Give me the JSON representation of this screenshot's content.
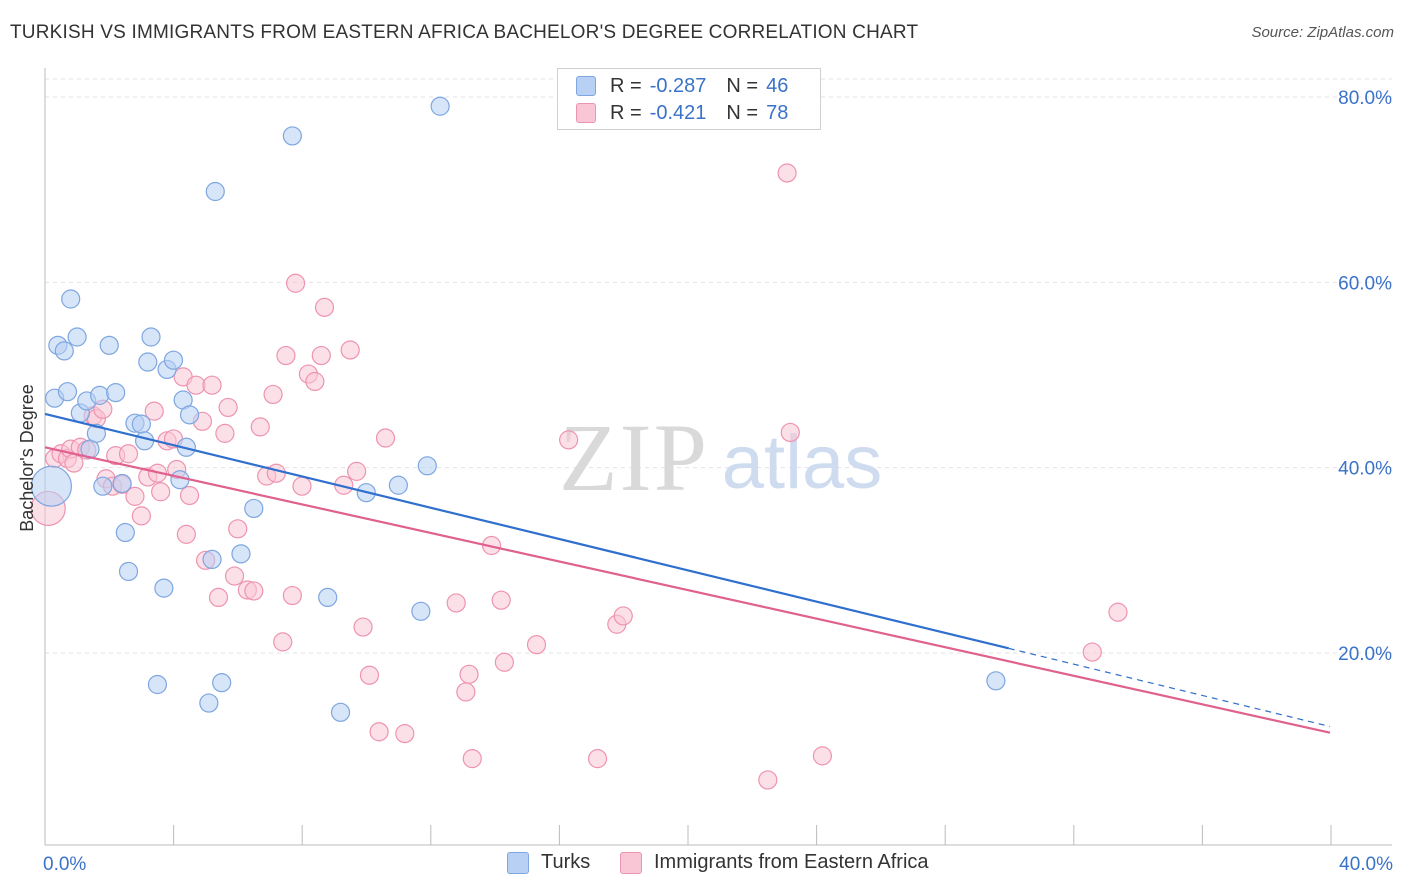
{
  "header": {
    "title": "TURKISH VS IMMIGRANTS FROM EASTERN AFRICA BACHELOR'S DEGREE CORRELATION CHART",
    "source": "Source: ZipAtlas.com"
  },
  "legend_top": {
    "rows": [
      {
        "r_label": "R =",
        "r_value": "-0.287",
        "n_label": "N =",
        "n_value": "46"
      },
      {
        "r_label": "R =",
        "r_value": "-0.421",
        "n_label": "N =",
        "n_value": "78"
      }
    ]
  },
  "legend_bottom": {
    "items": [
      {
        "label": "Turks"
      },
      {
        "label": "Immigrants from Eastern Africa"
      }
    ]
  },
  "watermark": {
    "zip": "ZIP",
    "atlas": "atlas"
  },
  "colors": {
    "turks_fill": "#b7d0f4",
    "turks_stroke": "#7ea6e0",
    "turks_line": "#2f6fcd",
    "eaf_fill": "#f9c6d6",
    "eaf_stroke": "#ee93b0",
    "eaf_line": "#e0608e",
    "axis_text": "#3a72c8",
    "grid": "#e2e2e2"
  },
  "chart_data": {
    "type": "scatter",
    "title": "TURKISH VS IMMIGRANTS FROM EASTERN AFRICA BACHELOR'S DEGREE CORRELATION CHART",
    "xlabel": "",
    "ylabel": "Bachelor's Degree",
    "xlim": [
      0,
      40
    ],
    "ylim": [
      0,
      85
    ],
    "x_tick_labels": [
      "0.0%",
      "40.0%"
    ],
    "y_tick_labels": [
      "20.0%",
      "40.0%",
      "60.0%",
      "80.0%"
    ],
    "y_ticks": [
      20,
      40,
      60,
      80
    ],
    "grid": true,
    "legend_position": "top-center",
    "series": [
      {
        "name": "Turks",
        "r": -0.287,
        "n": 46,
        "trend": {
          "x0": 0,
          "y0": 45.8,
          "x1": 30,
          "y1": 20.5,
          "dashed_to_x": 40
        },
        "points": [
          [
            0.2,
            38.0
          ],
          [
            0.3,
            47.5
          ],
          [
            0.4,
            53.2
          ],
          [
            0.6,
            52.6
          ],
          [
            0.7,
            48.2
          ],
          [
            0.8,
            58.2
          ],
          [
            1.0,
            54.1
          ],
          [
            1.1,
            45.9
          ],
          [
            1.3,
            47.2
          ],
          [
            1.4,
            42.0
          ],
          [
            1.6,
            43.7
          ],
          [
            1.7,
            47.8
          ],
          [
            1.8,
            38.0
          ],
          [
            2.0,
            53.2
          ],
          [
            2.2,
            48.1
          ],
          [
            2.4,
            38.3
          ],
          [
            2.5,
            33.0
          ],
          [
            2.6,
            28.8
          ],
          [
            2.8,
            44.8
          ],
          [
            3.0,
            44.7
          ],
          [
            3.1,
            42.9
          ],
          [
            3.2,
            51.4
          ],
          [
            3.3,
            54.1
          ],
          [
            3.5,
            16.6
          ],
          [
            3.7,
            27.0
          ],
          [
            3.8,
            50.6
          ],
          [
            4.0,
            51.6
          ],
          [
            4.2,
            38.7
          ],
          [
            4.3,
            47.3
          ],
          [
            4.4,
            42.2
          ],
          [
            4.5,
            45.7
          ],
          [
            5.1,
            14.6
          ],
          [
            5.2,
            30.1
          ],
          [
            5.3,
            69.8
          ],
          [
            5.5,
            16.8
          ],
          [
            6.1,
            30.7
          ],
          [
            6.5,
            35.6
          ],
          [
            7.7,
            75.8
          ],
          [
            8.8,
            26.0
          ],
          [
            9.2,
            13.6
          ],
          [
            10.0,
            37.3
          ],
          [
            11.0,
            38.1
          ],
          [
            11.7,
            24.5
          ],
          [
            11.9,
            40.2
          ],
          [
            12.3,
            79.0
          ],
          [
            29.6,
            17.0
          ]
        ]
      },
      {
        "name": "Immigrants from Eastern Africa",
        "r": -0.421,
        "n": 78,
        "trend": {
          "x0": 0,
          "y0": 42.2,
          "x1": 40,
          "y1": 11.4
        },
        "points": [
          [
            0.1,
            35.6
          ],
          [
            0.3,
            41.0
          ],
          [
            0.5,
            41.5
          ],
          [
            0.7,
            41.0
          ],
          [
            0.8,
            42.0
          ],
          [
            0.9,
            40.5
          ],
          [
            1.1,
            42.2
          ],
          [
            1.3,
            41.9
          ],
          [
            1.5,
            45.6
          ],
          [
            1.6,
            45.3
          ],
          [
            1.8,
            46.3
          ],
          [
            1.9,
            38.8
          ],
          [
            2.1,
            38.0
          ],
          [
            2.2,
            41.3
          ],
          [
            2.4,
            38.2
          ],
          [
            2.6,
            41.5
          ],
          [
            2.8,
            36.9
          ],
          [
            3.0,
            34.8
          ],
          [
            3.2,
            39.0
          ],
          [
            3.4,
            46.1
          ],
          [
            3.5,
            39.4
          ],
          [
            3.6,
            37.4
          ],
          [
            3.8,
            42.9
          ],
          [
            4.0,
            43.1
          ],
          [
            4.1,
            39.8
          ],
          [
            4.3,
            49.8
          ],
          [
            4.4,
            32.8
          ],
          [
            4.5,
            37.0
          ],
          [
            4.7,
            48.9
          ],
          [
            4.9,
            45.0
          ],
          [
            5.0,
            30.0
          ],
          [
            5.2,
            48.9
          ],
          [
            5.4,
            26.0
          ],
          [
            5.6,
            43.7
          ],
          [
            5.7,
            46.5
          ],
          [
            5.9,
            28.3
          ],
          [
            6.0,
            33.4
          ],
          [
            6.3,
            26.8
          ],
          [
            6.5,
            26.7
          ],
          [
            6.7,
            44.4
          ],
          [
            6.9,
            39.1
          ],
          [
            7.1,
            47.9
          ],
          [
            7.2,
            39.4
          ],
          [
            7.4,
            21.2
          ],
          [
            7.5,
            52.1
          ],
          [
            7.7,
            26.2
          ],
          [
            7.8,
            59.9
          ],
          [
            8.0,
            38.0
          ],
          [
            8.2,
            50.1
          ],
          [
            8.4,
            49.3
          ],
          [
            8.6,
            52.1
          ],
          [
            8.7,
            57.3
          ],
          [
            9.3,
            38.1
          ],
          [
            9.5,
            52.7
          ],
          [
            9.7,
            39.6
          ],
          [
            9.9,
            22.8
          ],
          [
            10.1,
            17.6
          ],
          [
            10.4,
            11.5
          ],
          [
            10.6,
            43.2
          ],
          [
            11.2,
            11.3
          ],
          [
            12.8,
            25.4
          ],
          [
            13.1,
            15.8
          ],
          [
            13.2,
            17.7
          ],
          [
            13.3,
            8.6
          ],
          [
            13.9,
            31.6
          ],
          [
            14.2,
            25.7
          ],
          [
            14.3,
            19.0
          ],
          [
            15.3,
            20.9
          ],
          [
            16.3,
            43.0
          ],
          [
            17.2,
            8.6
          ],
          [
            17.8,
            23.1
          ],
          [
            18.0,
            24.0
          ],
          [
            22.5,
            6.3
          ],
          [
            23.1,
            71.8
          ],
          [
            23.2,
            43.8
          ],
          [
            24.2,
            8.9
          ],
          [
            32.6,
            20.1
          ],
          [
            33.4,
            24.4
          ]
        ]
      }
    ]
  }
}
